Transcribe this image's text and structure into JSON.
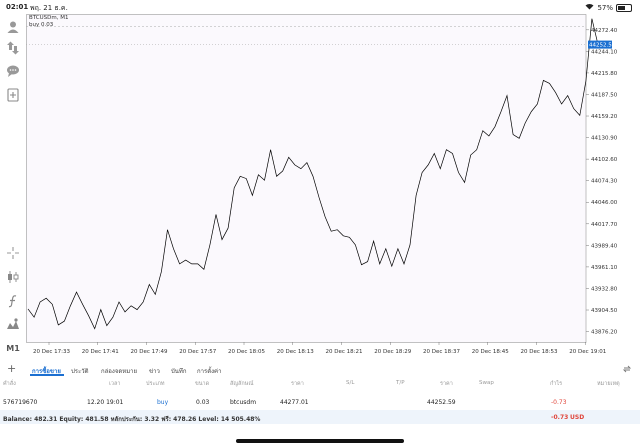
{
  "status_bar": {
    "time": "02:01",
    "date": "พฤ. 21 ธ.ค.",
    "battery": "57%",
    "battery_level": 0.57
  },
  "chart": {
    "symbol_line": "BTCUSDm, M1",
    "order_line": "buy 0.03",
    "line_color": "#000000",
    "price_tag_color": "#1b6fd1",
    "current_price_label": "44252.59"
  },
  "chart_data": {
    "type": "line",
    "title": "",
    "xlabel": "",
    "ylabel": "",
    "ylim": [
      43862.5,
      44286.6
    ],
    "x_ticks": [
      "20 Dec 17:33",
      "20 Dec 17:41",
      "20 Dec 17:49",
      "20 Dec 17:57",
      "20 Dec 18:05",
      "20 Dec 18:13",
      "20 Dec 18:21",
      "20 Dec 18:29",
      "20 Dec 18:37",
      "20 Dec 18:45",
      "20 Dec 18:53",
      "20 Dec 19:01"
    ],
    "y_ticks": [
      44272.4,
      44244.1,
      44215.8,
      44187.5,
      44159.2,
      44130.9,
      44102.6,
      44074.3,
      44046.0,
      44017.7,
      43989.4,
      43961.1,
      43932.8,
      43904.5,
      43876.2
    ],
    "entry_price": 44277.01,
    "series": [
      {
        "values": [
          43906,
          43895,
          43915,
          43920,
          43912,
          43885,
          43890,
          43910,
          43928,
          43912,
          43897,
          43880,
          43905,
          43884,
          43895,
          43915,
          43902,
          43910,
          43905,
          43915,
          43938,
          43925,
          43955,
          44010,
          43985,
          43965,
          43970,
          43965,
          43965,
          43958,
          43990,
          44030,
          43997,
          44012,
          44065,
          44080,
          44077,
          44055,
          44082,
          44075,
          44115,
          44080,
          44087,
          44105,
          44095,
          44090,
          44098,
          44080,
          44052,
          44027,
          44008,
          44010,
          44002,
          44000,
          43990,
          43964,
          43968,
          43995,
          43965,
          43985,
          43962,
          43985,
          43965,
          43990,
          44055,
          44085,
          44095,
          44110,
          44090,
          44115,
          44110,
          44085,
          44072,
          44108,
          44115,
          44140,
          44133,
          44145,
          44165,
          44186,
          44135,
          44130,
          44150,
          44165,
          44175,
          44206,
          44202,
          44190,
          44175,
          44186,
          44169,
          44160,
          44205,
          44287,
          44253
        ]
      }
    ]
  },
  "tabs": {
    "items": [
      "การซื้อขาย",
      "ประวัติ",
      "กล่องจดหมาย",
      "ข่าว",
      "บันทึก",
      "การตั้งค่า"
    ]
  },
  "table": {
    "headers": [
      "คำสั่ง",
      "เวลา",
      "ประเภท",
      "ขนาด",
      "สัญลักษณ์",
      "ราคา",
      "S/L",
      "T/P",
      "ราคา",
      "Swap",
      "กำไร",
      "หมายเหตุ"
    ],
    "row": {
      "ticket": "576719670",
      "time": "12.20 19:01",
      "type": "buy",
      "volume": "0.03",
      "symbol": "btcusdm",
      "price": "44277.01",
      "current_price": "44252.59",
      "profit": "-0.73"
    }
  },
  "balance": {
    "text": "Balance: 482.31 Equity: 481.58 หลักประกัน: 3.32 ฟรี: 478.26 Level: 14 505.48%",
    "profit": "-0.73",
    "currency": "USD"
  }
}
